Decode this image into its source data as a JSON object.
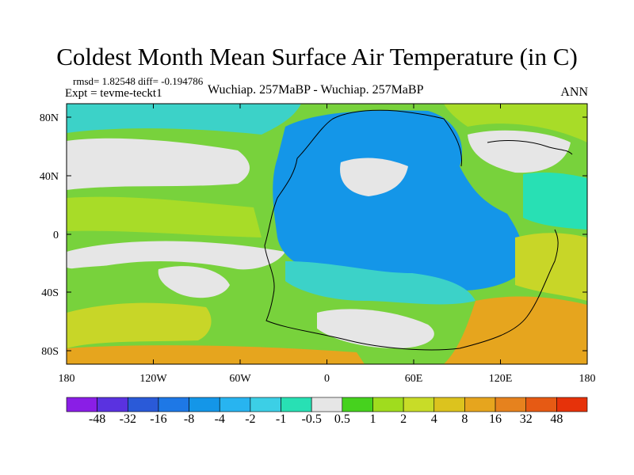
{
  "title": "Coldest Month Mean Surface Air Temperature (in C)",
  "stats": "rmsd= 1.82548 diff= -0.194786",
  "experiment": "Expt = tevme-teckt1",
  "center_title": "Wuchiap. 257MaBP - Wuchiap. 257MaBP",
  "right_title": "ANN",
  "lon_ticks": [
    "180",
    "120W",
    "60W",
    "0",
    "60E",
    "120E",
    "180"
  ],
  "lat_ticks": [
    "80N",
    "40N",
    "0",
    "40S",
    "80S"
  ],
  "colorbar": {
    "colors": [
      "#8a1ee6",
      "#5a32e0",
      "#2a5ad8",
      "#1e78e6",
      "#1496e8",
      "#28b4f0",
      "#3ccfe6",
      "#28e0b4",
      "#e6e6e6",
      "#46d21e",
      "#a0dc1e",
      "#c8dc28",
      "#dcc31e",
      "#e6a51e",
      "#e6821e",
      "#e65a14",
      "#e6320a"
    ],
    "labels": [
      "-48",
      "-32",
      "-16",
      "-8",
      "-4",
      "-2",
      "-1",
      "-0.5",
      "0.5",
      "1",
      "2",
      "4",
      "8",
      "16",
      "32",
      "48"
    ]
  },
  "palette": {
    "green": "#78d23c",
    "lime": "#a8dc28",
    "yellow": "#c8d628",
    "cyan": "#3cd2c8",
    "teal": "#28e0b4",
    "blue": "#1496e8",
    "grey": "#e6e6e6",
    "orange": "#e6a51e",
    "darkorange": "#e6821e"
  }
}
